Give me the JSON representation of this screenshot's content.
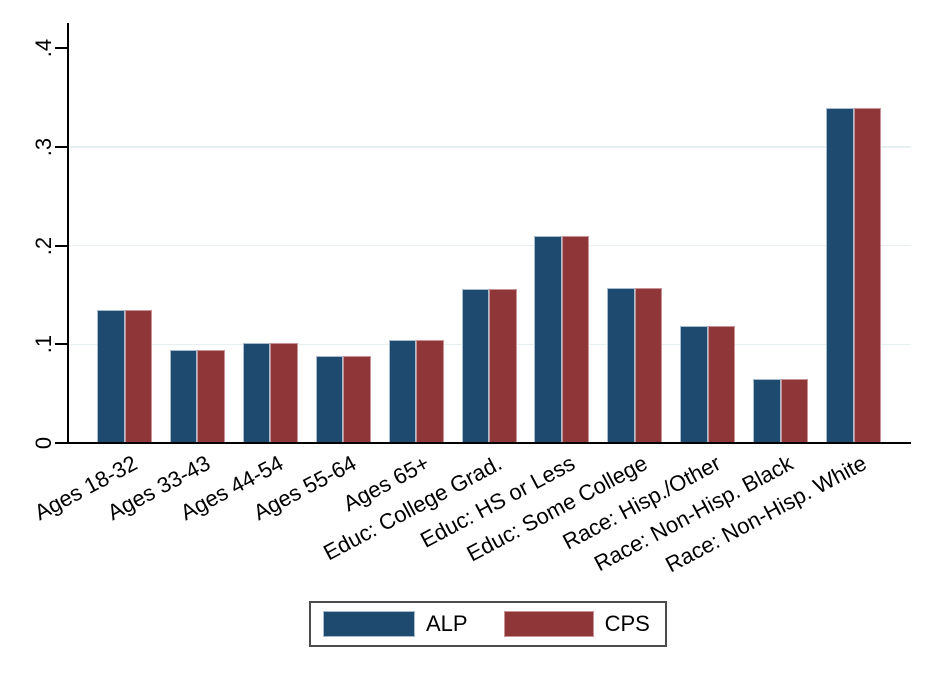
{
  "chart_data": {
    "type": "bar",
    "title": "",
    "xlabel": "",
    "ylabel": "",
    "categories": [
      "Ages 18-32",
      "Ages 33-43",
      "Ages 44-54",
      "Ages 55-64",
      "Ages 65+",
      "Educ: College Grad.",
      "Educ: HS or Less",
      "Educ: Some College",
      "Race: Hisp./Other",
      "Race: Non-Hisp. Black",
      "Race: Non-Hisp. White"
    ],
    "series": [
      {
        "name": "ALP",
        "color": "#1d4a6e",
        "border_color": "#a9bccd",
        "values": [
          0.135,
          0.094,
          0.101,
          0.088,
          0.104,
          0.156,
          0.21,
          0.157,
          0.118,
          0.065,
          0.339
        ]
      },
      {
        "name": "CPS",
        "color": "#8f3639",
        "border_color": "#c79397",
        "values": [
          0.135,
          0.094,
          0.101,
          0.088,
          0.104,
          0.156,
          0.21,
          0.157,
          0.118,
          0.065,
          0.339
        ]
      }
    ],
    "yticks": [
      {
        "value": 0,
        "label": "0"
      },
      {
        "value": 0.1,
        "label": ".1"
      },
      {
        "value": 0.2,
        "label": ".2"
      },
      {
        "value": 0.3,
        "label": ".3"
      },
      {
        "value": 0.4,
        "label": ".4"
      }
    ],
    "gridline_values": [
      0.1,
      0.2,
      0.3
    ],
    "ylim": [
      0,
      0.42
    ],
    "grid_on": true,
    "grid_color": "#e6eff2",
    "axis_color": "#000000",
    "legend_position": "bottom-center"
  }
}
